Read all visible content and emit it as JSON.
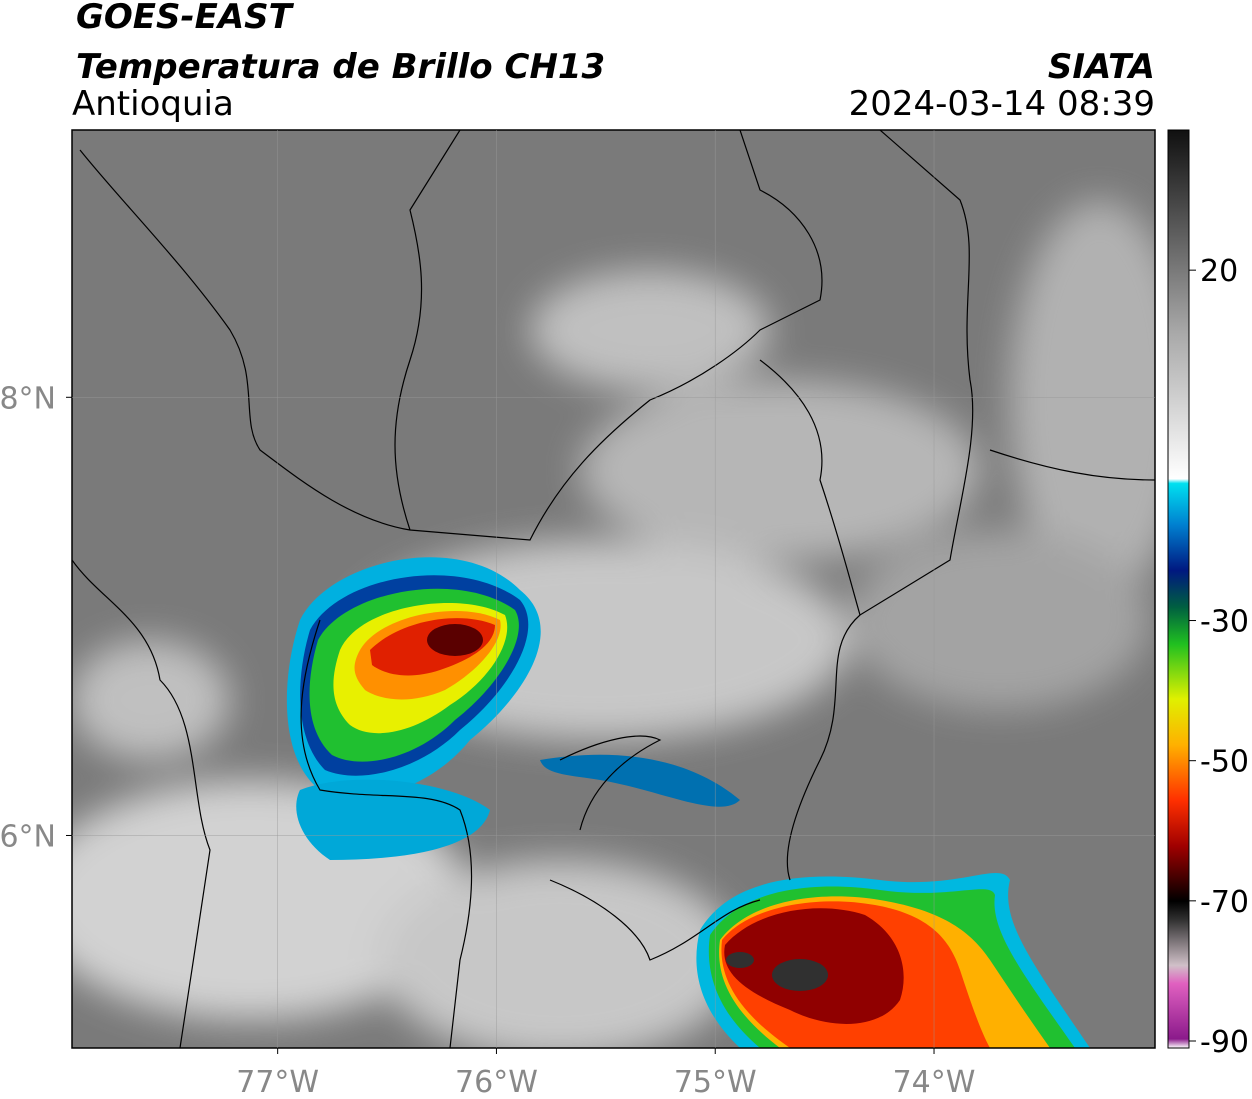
{
  "header": {
    "satellite": "GOES-EAST",
    "product": "Temperatura de Brillo CH13",
    "region": "Antioquia",
    "source": "SIATA",
    "datetime": "2024-03-14 08:39"
  },
  "map": {
    "xlim": [
      -77.94,
      -72.99
    ],
    "ylim": [
      5.03,
      9.22
    ],
    "xticks": [
      {
        "value": -77,
        "label": "77°W"
      },
      {
        "value": -76,
        "label": "76°W"
      },
      {
        "value": -75,
        "label": "75°W"
      },
      {
        "value": -74,
        "label": "74°W"
      }
    ],
    "yticks": [
      {
        "value": 6,
        "label": "6°N"
      },
      {
        "value": 8,
        "label": "8°N"
      }
    ],
    "grid": true
  },
  "colorbar": {
    "lim": [
      -91,
      40
    ],
    "ticks": [
      20,
      -30,
      -50,
      -70,
      -90
    ]
  }
}
